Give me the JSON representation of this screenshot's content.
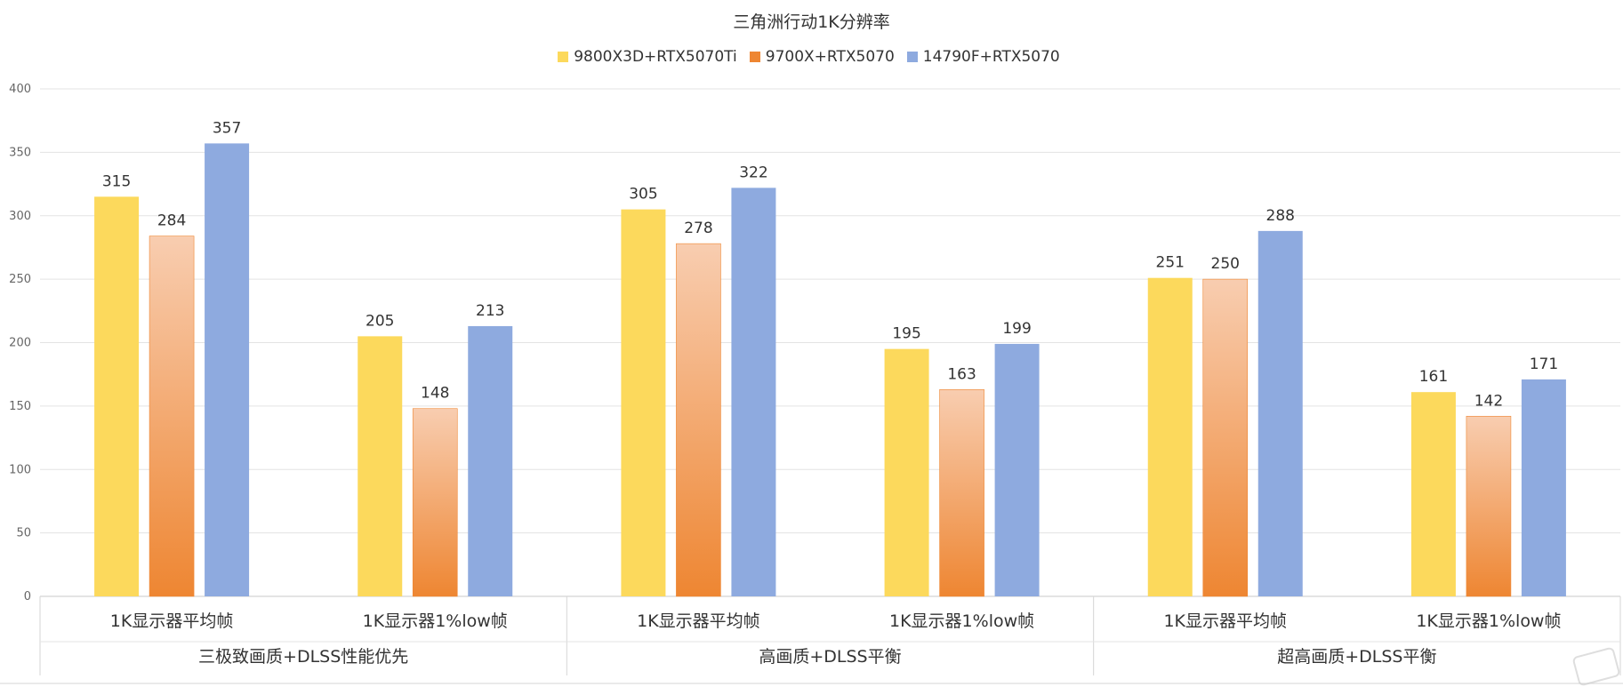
{
  "chart_data": {
    "type": "bar",
    "title": "三角洲行动1K分辨率",
    "categories": [
      "1K显示器平均帧",
      "1K显示器1%low帧",
      "1K显示器平均帧",
      "1K显示器1%low帧",
      "1K显示器平均帧",
      "1K显示器1%low帧"
    ],
    "groups": [
      {
        "label": "三极致画质+DLSS性能优先",
        "span": 2
      },
      {
        "label": "高画质+DLSS平衡",
        "span": 2
      },
      {
        "label": "超高画质+DLSS平衡",
        "span": 2
      }
    ],
    "series": [
      {
        "name": "9800X3D+RTX5070Ti",
        "color": "#FCD95C",
        "values": [
          315,
          205,
          305,
          195,
          251,
          161
        ]
      },
      {
        "name": "9700X+RTX5070",
        "color": "#EE8632",
        "color_light": "#F8CDB0",
        "values": [
          284,
          148,
          278,
          163,
          250,
          142
        ]
      },
      {
        "name": "14790F+RTX5070",
        "color": "#8EAADF",
        "values": [
          357,
          213,
          322,
          199,
          288,
          171
        ]
      }
    ],
    "ylim": [
      0,
      400
    ],
    "yticks": [
      0,
      50,
      100,
      150,
      200,
      250,
      300,
      350,
      400
    ],
    "grid": true,
    "legend_position": "top-center",
    "data_labels": true,
    "xlabel": "",
    "ylabel": ""
  },
  "watermark": {
    "icon": "watermark-stamp-icon"
  }
}
